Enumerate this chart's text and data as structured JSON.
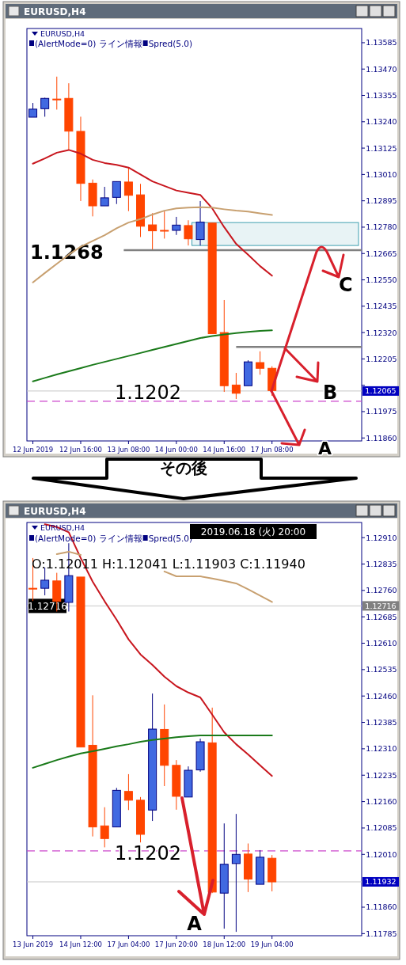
{
  "chart_data": [
    {
      "type": "candlestick",
      "title": "EURUSD,H4",
      "subtitle": "EURUSD,H4",
      "categories": [
        "12 Jun 2019",
        null,
        null,
        null,
        "12 Jun 16:00",
        null,
        null,
        null,
        "13 Jun 08:00",
        null,
        null,
        null,
        "14 Jun 00:00",
        null,
        null,
        null,
        "14 Jun 16:00",
        null,
        null,
        null,
        "17 Jun 08:00",
        null,
        null,
        null,
        null,
        null,
        null,
        null
      ],
      "ohlc": [
        [
          1.1326,
          1.13322,
          1.1326,
          1.13295
        ],
        [
          1.13297,
          1.13345,
          1.13262,
          1.13342
        ],
        [
          1.13339,
          1.13437,
          1.13293,
          1.13339
        ],
        [
          1.13342,
          1.13408,
          1.13117,
          1.13199
        ],
        [
          1.13198,
          1.13262,
          1.12894,
          1.12971
        ],
        [
          1.12972,
          1.12988,
          1.12827,
          1.12873
        ],
        [
          1.12873,
          1.12956,
          1.12873,
          1.12908
        ],
        [
          1.1291,
          1.12979,
          1.12881,
          1.12979
        ],
        [
          1.12977,
          1.1304,
          1.1285,
          1.12919
        ],
        [
          1.12921,
          1.12969,
          1.12737,
          1.12784
        ],
        [
          1.1279,
          1.12841,
          1.12683,
          1.12764
        ],
        [
          1.12766,
          1.12852,
          1.1273,
          1.12766
        ],
        [
          1.12766,
          1.12825,
          1.12746,
          1.12789
        ],
        [
          1.12787,
          1.1281,
          1.127,
          1.12729
        ],
        [
          1.12726,
          1.12894,
          1.127,
          1.12802
        ],
        [
          1.12798,
          1.12798,
          1.12315,
          1.12315
        ],
        [
          1.1232,
          1.12462,
          1.12061,
          1.12088
        ],
        [
          1.12091,
          1.12144,
          1.1203,
          1.12055
        ],
        [
          1.12088,
          1.12199,
          1.12088,
          1.12192
        ],
        [
          1.12189,
          1.12238,
          1.12136,
          1.12164
        ],
        [
          1.12164,
          1.12173,
          1.12044,
          1.12067
        ],
        null,
        null,
        null,
        null,
        null,
        null,
        null
      ],
      "series": [
        {
          "type": "line",
          "color": "#c8161e",
          "values": [
            1.13057,
            1.1308,
            1.13105,
            1.13117,
            1.13101,
            1.13074,
            1.1306,
            1.13052,
            1.1304,
            1.1301,
            1.1298,
            1.1296,
            1.1294,
            1.1293,
            1.12921,
            1.12862,
            1.1278,
            1.12707,
            1.1266,
            1.1261,
            1.12568,
            null,
            null,
            null,
            null,
            null,
            null,
            null
          ]
        },
        {
          "type": "line",
          "color": "#c8a070",
          "values": [
            1.12539,
            1.1258,
            1.1262,
            1.1266,
            1.12695,
            1.1272,
            1.12745,
            1.12775,
            1.128,
            1.12815,
            1.12835,
            1.12852,
            1.12862,
            1.12865,
            1.12867,
            1.12865,
            1.12858,
            1.12852,
            1.12848,
            1.1284,
            1.12833,
            null,
            null,
            null,
            null,
            null,
            null,
            null
          ]
        },
        {
          "type": "line",
          "color": "#1a7a1a",
          "values": [
            1.12107,
            1.12122,
            1.12137,
            1.12151,
            1.12165,
            1.12179,
            1.12192,
            1.12205,
            1.12218,
            1.12231,
            1.12244,
            1.12257,
            1.1227,
            1.12283,
            1.12296,
            1.12305,
            1.12312,
            1.12318,
            1.12323,
            1.12327,
            1.1233,
            null,
            null,
            null,
            null,
            null,
            null,
            null
          ]
        }
      ],
      "ylim": [
        1.11847,
        1.13647
      ],
      "yticks": [
        1.13585,
        {
          "value": 1.1347,
          "label": "1.13470"
        },
        1.13355,
        {
          "value": 1.1324,
          "label": "1.13240"
        },
        1.13125,
        {
          "value": 1.1301,
          "label": "1.13010"
        },
        1.12895,
        {
          "value": 1.1278,
          "label": "1.12780"
        },
        1.12665,
        {
          "value": 1.1255,
          "label": "1.12550"
        },
        1.12435,
        {
          "value": 1.1232,
          "label": "1.12320"
        },
        1.12205,
        {
          "value": 1.1209,
          "label": null
        },
        1.11975,
        {
          "value": 1.1186,
          "label": "1.11860"
        }
      ],
      "ref_lines": [
        {
          "axis": "y",
          "value": 1.1268,
          "label": "1.1268",
          "color": "#808080"
        },
        {
          "axis": "y",
          "value": 1.12257,
          "color": "#808080"
        },
        {
          "axis": "y",
          "value": 1.1202,
          "label": "1.1202",
          "color": "#cc44cc",
          "line_style": "dashed"
        },
        {
          "axis": "y",
          "value": 1.12065,
          "label": "1.12065",
          "color": "#c8c8c8"
        }
      ],
      "bands": [
        {
          "axis": "y",
          "from": 1.127,
          "to": 1.128,
          "color": "#40a0b0"
        }
      ],
      "annotations": [
        "(AlertMode=0) ライン情報",
        "Spred(5.0)",
        {
          "text": "C",
          "y": 1.1268
        },
        {
          "text": "B",
          "y": 1.12257
        },
        "A",
        "その後"
      ]
    },
    {
      "type": "candlestick",
      "title": "EURUSD,H4",
      "subtitle": "EURUSD,H4",
      "categories": [
        "13 Jun 2019",
        null,
        null,
        null,
        "14 Jun 12:00",
        null,
        null,
        null,
        "17 Jun 04:00",
        null,
        null,
        null,
        "17 Jun 20:00",
        null,
        null,
        null,
        "18 Jun 12:00",
        null,
        null,
        null,
        "19 Jun 04:00",
        null,
        null,
        null,
        null,
        null,
        null,
        null
      ],
      "ohlc": [
        [
          1.12766,
          1.12852,
          1.1273,
          1.12766
        ],
        [
          1.12766,
          1.12825,
          1.12746,
          1.12789
        ],
        [
          1.12787,
          1.1281,
          1.127,
          1.12729
        ],
        [
          1.12726,
          1.12894,
          1.127,
          1.12802
        ],
        [
          1.12798,
          1.12798,
          1.12315,
          1.12315
        ],
        [
          1.1232,
          1.12462,
          1.12061,
          1.12088
        ],
        [
          1.12091,
          1.12144,
          1.1203,
          1.12055
        ],
        [
          1.12088,
          1.12199,
          1.12088,
          1.12192
        ],
        [
          1.12189,
          1.12238,
          1.12136,
          1.12164
        ],
        [
          1.12164,
          1.12173,
          1.12044,
          1.12067
        ],
        [
          1.12136,
          1.12467,
          1.12105,
          1.12366
        ],
        [
          1.12365,
          1.12436,
          1.12204,
          1.12263
        ],
        [
          1.12263,
          1.12278,
          1.12137,
          1.12175
        ],
        [
          1.12173,
          1.1226,
          1.12173,
          1.12249
        ],
        [
          1.1225,
          1.12339,
          1.12245,
          1.1233
        ],
        [
          1.12327,
          1.12427,
          1.119,
          1.11903
        ],
        [
          1.119,
          1.12098,
          1.11799,
          1.11982
        ],
        [
          1.11984,
          1.12125,
          1.1179,
          1.1201
        ],
        [
          1.12011,
          1.12041,
          1.11903,
          1.1194
        ],
        [
          1.11925,
          1.12022,
          1.11925,
          1.12002
        ],
        [
          1.11999,
          1.12008,
          1.11905,
          1.11932
        ],
        null,
        null,
        null,
        null,
        null,
        null,
        null
      ],
      "series": [
        {
          "type": "line",
          "color": "#c8161e",
          "values": [
            null,
            1.12948,
            1.1294,
            1.12925,
            1.12852,
            1.12785,
            1.12729,
            1.12677,
            1.12621,
            1.12578,
            1.12548,
            1.12515,
            1.12488,
            1.1247,
            1.12456,
            1.12407,
            1.12357,
            1.12323,
            1.12294,
            1.12263,
            1.12233,
            null,
            null,
            null,
            null,
            null,
            null,
            null
          ]
        },
        {
          "type": "line",
          "color": "#c8a070",
          "values": [
            null,
            null,
            1.12863,
            1.1287,
            1.12861,
            null,
            null,
            null,
            null,
            null,
            null,
            1.12814,
            1.128,
            1.128,
            1.128,
            1.12794,
            1.12787,
            1.1278,
            1.12763,
            1.12745,
            1.12727,
            null,
            null,
            null,
            null,
            null,
            null,
            null
          ]
        },
        {
          "type": "line",
          "color": "#1a7a1a",
          "values": [
            1.12256,
            1.12267,
            1.12278,
            1.12288,
            1.12297,
            1.12303,
            1.1231,
            1.12317,
            1.12323,
            1.1233,
            1.12335,
            1.12339,
            1.12343,
            1.12346,
            1.12348,
            1.12348,
            1.12348,
            1.12348,
            1.12348,
            1.12348,
            1.12348,
            null,
            null,
            null,
            null,
            null,
            null,
            null
          ]
        }
      ],
      "ylim": [
        1.11779,
        1.12953
      ],
      "yticks": [
        {
          "value": 1.1291,
          "label": "1.12910"
        },
        1.12835,
        {
          "value": 1.1276,
          "label": "1.12760"
        },
        1.12685,
        {
          "value": 1.1261,
          "label": "1.12610"
        },
        1.12535,
        {
          "value": 1.1246,
          "label": "1.12460"
        },
        1.12385,
        {
          "value": 1.1231,
          "label": "1.12310"
        },
        1.12235,
        {
          "value": 1.1216,
          "label": "1.12160"
        },
        1.12085,
        {
          "value": 1.1201,
          "label": "1.12010"
        },
        {
          "value": 1.1186,
          "label": "1.11860"
        },
        1.11785
      ],
      "ref_lines": [
        {
          "axis": "y",
          "value": 1.1202,
          "label": "1.1202",
          "color": "#cc44cc",
          "line_style": "dashed"
        },
        {
          "axis": "y",
          "value": 1.12716,
          "label": "1.12716",
          "color": "#c8c8c8"
        },
        {
          "axis": "y",
          "value": 1.11932,
          "label": "1.11932",
          "color": "#c8c8c8"
        }
      ],
      "annotations": [
        "(AlertMode=0) ライン情報",
        "Spred(5.0)",
        "2019.06.18 (火) 20:00",
        "O:1.12011  H:1.12041  L:1.11903  C:1.11940",
        {
          "text": "A",
          "x": "18 Jun 12:00",
          "y": 1.11799
        }
      ]
    }
  ]
}
